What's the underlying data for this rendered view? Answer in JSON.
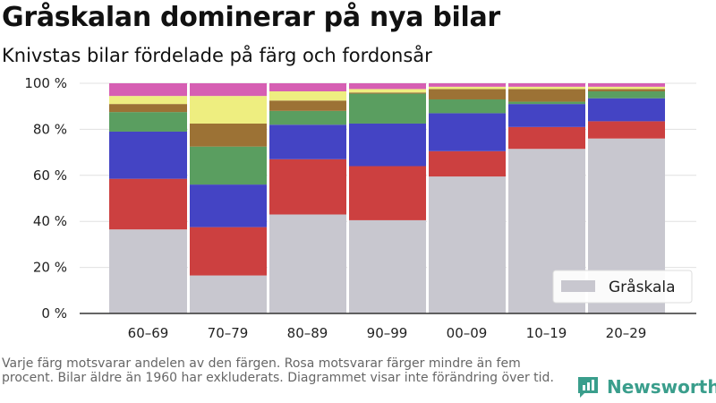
{
  "title": "Gråskalan dominerar på nya bilar",
  "subtitle": "Knivstas bilar fördelade på färg och fordonsår",
  "note": "Varje färg motsvarar andelen av den färgen. Rosa motsvarar färger mindre än fem procent. Bilar äldre än 1960 har exkluderats. Diagrammet visar inte förändring över tid.",
  "brand": {
    "name": "Newsworthy",
    "icon": "newsworthy-logo-icon"
  },
  "chart_data": {
    "type": "bar",
    "stacked": true,
    "categories": [
      "60–69",
      "70–79",
      "80–89",
      "90–99",
      "00–09",
      "10–19",
      "20–29"
    ],
    "series": [
      {
        "name": "Gråskala",
        "color": "#c8c7cf",
        "values": [
          36.5,
          16.5,
          43,
          40.5,
          59.5,
          71.5,
          76
        ]
      },
      {
        "color": "#cc4040",
        "values": [
          22,
          21,
          24,
          23.5,
          11,
          9.5,
          7.5
        ]
      },
      {
        "color": "#4444c4",
        "values": [
          20.5,
          18.5,
          15,
          18.5,
          16.5,
          10,
          10
        ]
      },
      {
        "color": "#5a9e60",
        "values": [
          8.5,
          16.5,
          6,
          13,
          6,
          1,
          3
        ]
      },
      {
        "color": "#9c7235",
        "values": [
          3.5,
          10,
          4.5,
          0.5,
          4.5,
          5.5,
          1
        ]
      },
      {
        "color": "#eeee80",
        "values": [
          3.5,
          12,
          4,
          1.5,
          1,
          1,
          1
        ]
      },
      {
        "color": "#d65fb3",
        "values": [
          5.5,
          5.5,
          3.5,
          2.5,
          1.5,
          1.5,
          1.5
        ]
      }
    ],
    "y_ticks": [
      "0 %",
      "20 %",
      "40 %",
      "60 %",
      "80 %",
      "100 %"
    ],
    "ylim": [
      0,
      100
    ],
    "grid": true,
    "legend": {
      "position": "bottom-right",
      "entries": [
        "Gråskala"
      ]
    }
  }
}
